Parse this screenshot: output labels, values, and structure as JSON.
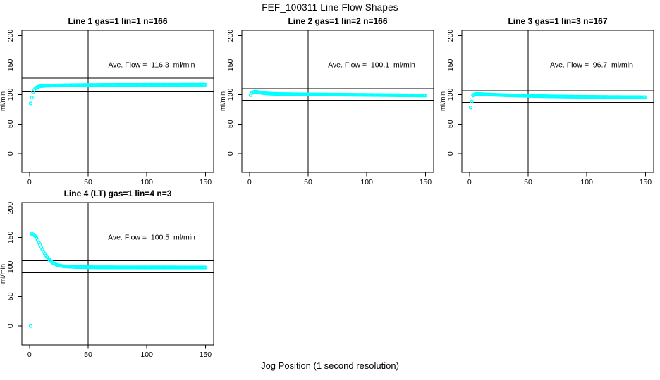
{
  "title": "FEF_100311  Line Flow Shapes",
  "xlabel": "Jog Position (1 second resolution)",
  "colors": {
    "points": "#00FFFF",
    "axis": "#000000",
    "background": "#FFFFFF",
    "text": "#000000"
  },
  "chart_data": {
    "type": "scatter",
    "title": "FEF_100311  Line Flow Shapes",
    "xlabel": "Jog Position (1 second resolution)",
    "ylabel": "ml/min",
    "x_ticks": [
      0,
      50,
      100,
      150
    ],
    "y_ticks": [
      0,
      50,
      100,
      150,
      200
    ],
    "xlim": [
      -6.5,
      157
    ],
    "ylim": [
      -32,
      209
    ],
    "grid": false,
    "legend": "none",
    "vline_x": 50,
    "marker": "open-circle",
    "panels": [
      {
        "title": "Line 1 gas=1 lin=1 n=166",
        "annotation": "Ave. Flow =  116.3  ml/min",
        "ave_flow_ml_min": 116.3,
        "n": 166,
        "hlines": [
          127.9,
          104.7
        ],
        "points": [
          [
            1,
            85
          ],
          [
            2,
            95
          ],
          [
            3,
            104
          ],
          [
            4,
            108
          ],
          [
            5,
            110.5
          ],
          [
            6,
            112
          ],
          [
            7,
            113
          ],
          [
            8,
            113.6
          ],
          [
            9,
            114
          ],
          [
            10,
            114.3
          ],
          [
            12,
            114.7
          ],
          [
            15,
            115
          ],
          [
            20,
            115.3
          ],
          [
            30,
            115.7
          ],
          [
            40,
            116
          ],
          [
            50,
            116.2
          ],
          [
            60,
            116.3
          ],
          [
            80,
            116.5
          ],
          [
            100,
            116.6
          ],
          [
            120,
            116.7
          ],
          [
            150,
            116.8
          ]
        ]
      },
      {
        "title": "Line 2 gas=1 lin=2 n=166",
        "annotation": "Ave. Flow =  100.1  ml/min",
        "ave_flow_ml_min": 100.1,
        "n": 166,
        "hlines": [
          110.1,
          90.1
        ],
        "points": [
          [
            1,
            99
          ],
          [
            2,
            102.5
          ],
          [
            3,
            104
          ],
          [
            4,
            104.8
          ],
          [
            5,
            105
          ],
          [
            6,
            104.8
          ],
          [
            7,
            104.4
          ],
          [
            8,
            104
          ],
          [
            9,
            103.5
          ],
          [
            10,
            103
          ],
          [
            12,
            102.4
          ],
          [
            14,
            102
          ],
          [
            16,
            101.7
          ],
          [
            20,
            101.3
          ],
          [
            25,
            101
          ],
          [
            30,
            100.8
          ],
          [
            40,
            100.5
          ],
          [
            50,
            100.3
          ],
          [
            60,
            100.1
          ],
          [
            70,
            100
          ],
          [
            80,
            99.8
          ],
          [
            90,
            99.6
          ],
          [
            100,
            99.4
          ],
          [
            110,
            99.2
          ],
          [
            120,
            99
          ],
          [
            130,
            98.8
          ],
          [
            140,
            98.6
          ],
          [
            150,
            98.4
          ]
        ]
      },
      {
        "title": "Line 3 gas=1 lin=3 n=167",
        "annotation": "Ave. Flow =  96.7  ml/min",
        "ave_flow_ml_min": 96.7,
        "n": 167,
        "hlines": [
          106.4,
          87.0
        ],
        "points": [
          [
            1,
            78
          ],
          [
            3,
            98.5
          ],
          [
            4,
            100.2
          ],
          [
            5,
            101
          ],
          [
            6,
            101.2
          ],
          [
            8,
            101
          ],
          [
            10,
            100.8
          ],
          [
            12,
            100.5
          ],
          [
            15,
            100.2
          ],
          [
            20,
            99.8
          ],
          [
            25,
            99.4
          ],
          [
            30,
            99
          ],
          [
            40,
            98.4
          ],
          [
            50,
            97.9
          ],
          [
            60,
            97.4
          ],
          [
            70,
            97
          ],
          [
            80,
            96.7
          ],
          [
            90,
            96.4
          ],
          [
            100,
            96.2
          ],
          [
            110,
            96
          ],
          [
            120,
            95.8
          ],
          [
            130,
            95.7
          ],
          [
            140,
            95.6
          ],
          [
            150,
            95.5
          ]
        ]
      },
      {
        "title": "Line 4 (LT) gas=1 lin=4 n=3",
        "annotation": "Ave. Flow =  100.5  ml/min",
        "ave_flow_ml_min": 100.5,
        "n": 3,
        "hlines": [
          110.6,
          90.5
        ],
        "points": [
          [
            1,
            0
          ],
          [
            2,
            156
          ],
          [
            3,
            155.5
          ],
          [
            4,
            154
          ],
          [
            5,
            152
          ],
          [
            6,
            149
          ],
          [
            7,
            145.5
          ],
          [
            8,
            141.5
          ],
          [
            9,
            137.5
          ],
          [
            10,
            133.5
          ],
          [
            11,
            129.5
          ],
          [
            12,
            126
          ],
          [
            13,
            122.5
          ],
          [
            14,
            119.5
          ],
          [
            15,
            116.5
          ],
          [
            16,
            114
          ],
          [
            17,
            112
          ],
          [
            18,
            110
          ],
          [
            19,
            108.5
          ],
          [
            20,
            107
          ],
          [
            21,
            105.8
          ],
          [
            22,
            104.8
          ],
          [
            24,
            103.3
          ],
          [
            26,
            102.3
          ],
          [
            28,
            101.6
          ],
          [
            30,
            101.1
          ],
          [
            35,
            100.4
          ],
          [
            40,
            100
          ],
          [
            50,
            99.7
          ],
          [
            60,
            99.5
          ],
          [
            80,
            99.4
          ],
          [
            100,
            99.3
          ],
          [
            120,
            99.3
          ],
          [
            150,
            99.2
          ]
        ]
      }
    ]
  }
}
